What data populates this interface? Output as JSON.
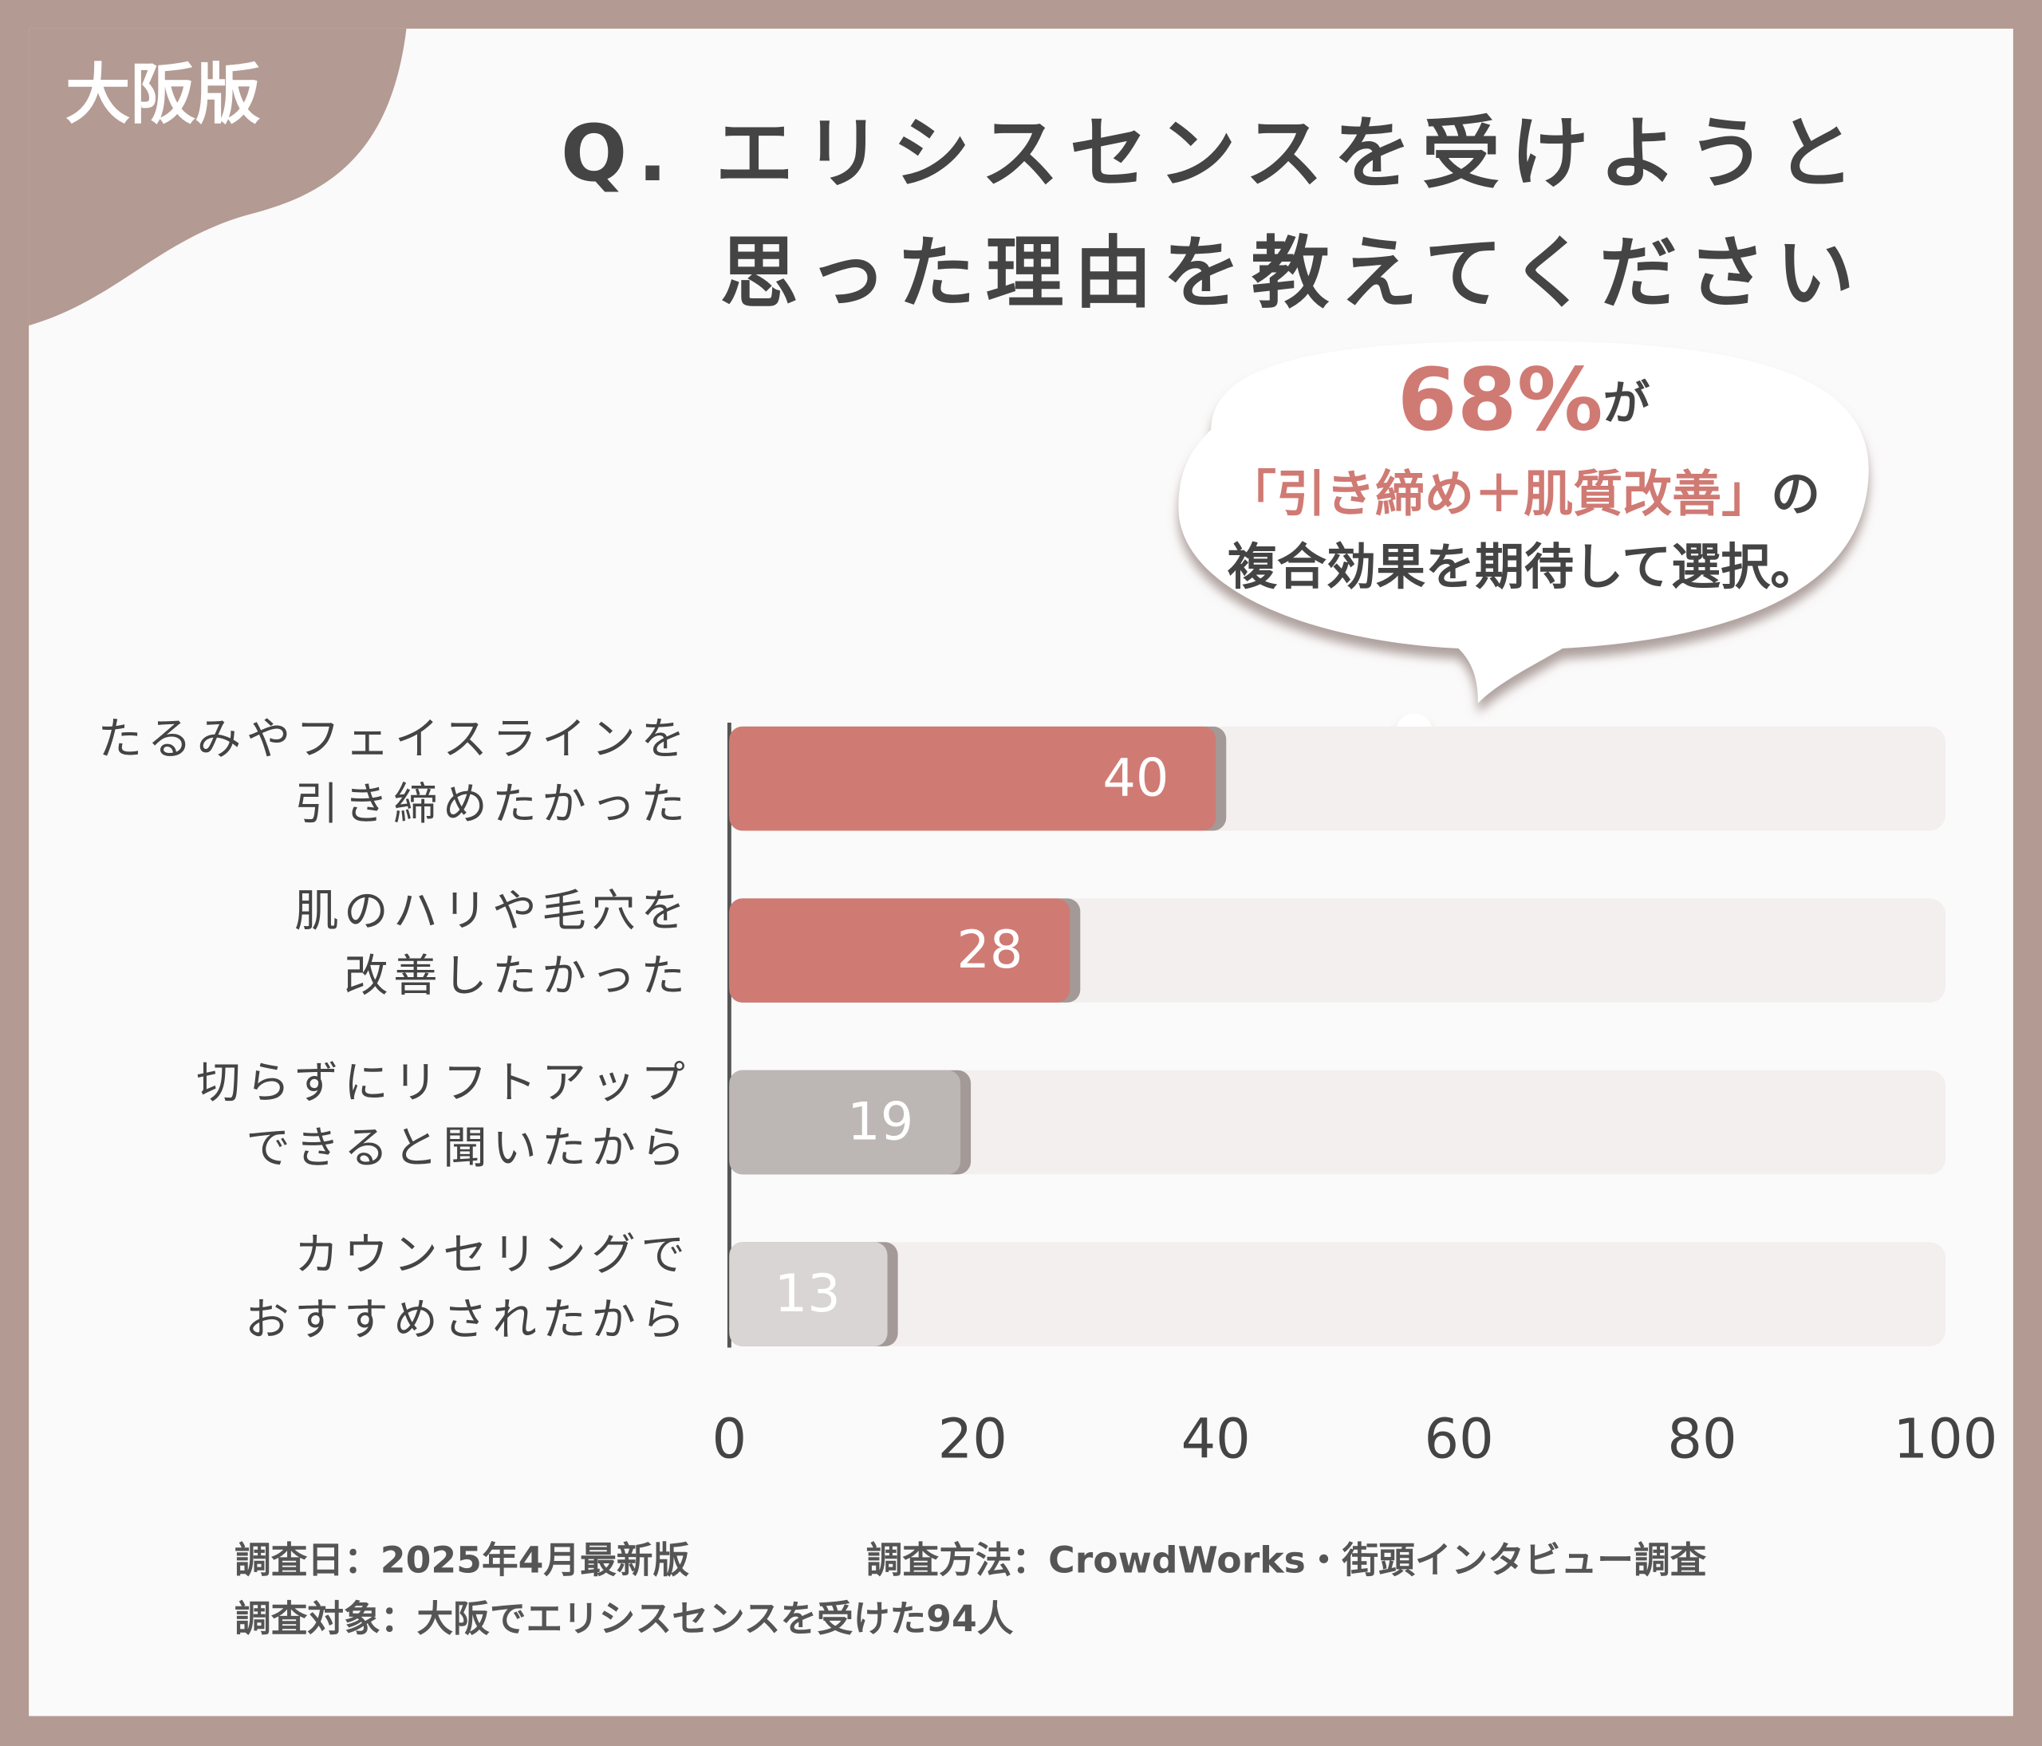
{
  "badge": "大阪版",
  "chart_data": {
    "type": "hbar",
    "title": [
      "Q. エリシスセンスを受けようと",
      "思った理由を教えてください"
    ],
    "annotation": [
      [
        {
          "text": "68%",
          "color": "#d07a74"
        },
        {
          "text": "が"
        }
      ],
      [
        {
          "text": "「引き締め＋肌質改善」",
          "color": "#d07a74"
        },
        {
          "text": "の"
        }
      ],
      [
        {
          "text": "複合効果を期待して選択。"
        }
      ]
    ],
    "categories": [
      [
        "たるみやフェイスラインを",
        "引き締めたかった"
      ],
      [
        "肌のハリや毛穴を",
        "改善したかった"
      ],
      [
        "切らずにリフトアップ",
        "できると聞いたから"
      ],
      [
        "カウンセリングで",
        "おすすめされたから"
      ]
    ],
    "values": [
      40,
      28,
      19,
      13
    ],
    "colors": [
      "#d07a74",
      "#d07a74",
      "#bcb7b5",
      "#d9d5d4"
    ],
    "xlim": [
      0,
      100
    ],
    "xticks": [
      0,
      20,
      40,
      60,
      80,
      100
    ],
    "notes": [
      "調査日：2025年4月最新版",
      "調査方法：CrowdWorks・街頭インタビュー調査",
      "調査対象：大阪でエリシスセンスを受けた94人"
    ]
  }
}
